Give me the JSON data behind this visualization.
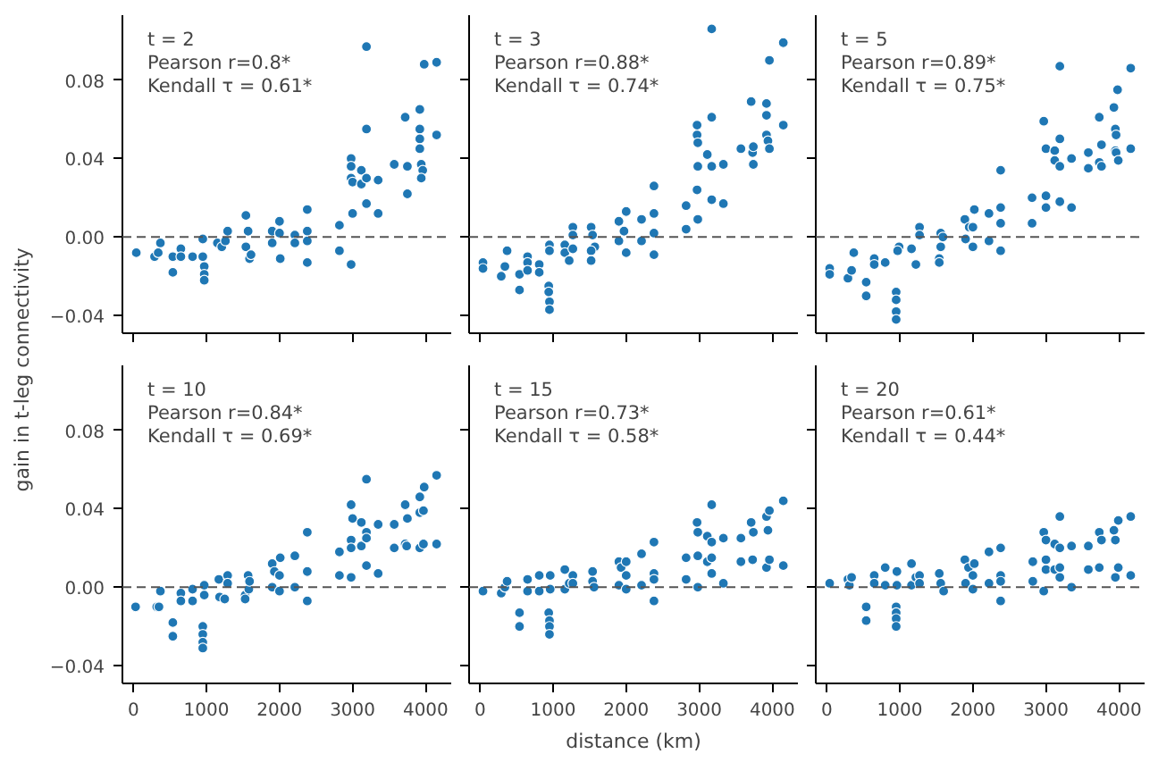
{
  "chart_data": [
    {
      "type": "scatter",
      "color": "#1f77b4",
      "grid": false,
      "tick_labels": "y",
      "xlim": [
        -150,
        4350
      ],
      "ylim": [
        -0.049,
        0.113
      ],
      "xticks": [
        {
          "value": 0,
          "label": null
        },
        {
          "value": 1000,
          "label": null
        },
        {
          "value": 2000,
          "label": null
        },
        {
          "value": 3000,
          "label": null
        },
        {
          "value": 4000,
          "label": null
        }
      ],
      "yticks": [
        {
          "value": -0.04,
          "label": "−0.04"
        },
        {
          "value": 0,
          "label": "0.00"
        },
        {
          "value": 0.04,
          "label": "0.04"
        },
        {
          "value": 0.08,
          "label": "0.08"
        }
      ],
      "ref_lines": [
        {
          "axis": "y",
          "value": 0,
          "color": "#555555",
          "line_style": "dashed"
        }
      ],
      "annotations": [
        "t = 2",
        "Pearson r=0.8*",
        "Kendall τ = 0.61*"
      ],
      "x": [
        40,
        290,
        340,
        370,
        540,
        540,
        650,
        650,
        810,
        950,
        950,
        970,
        970,
        970,
        1150,
        1210,
        1260,
        1290,
        1540,
        1540,
        1570,
        1590,
        1610,
        1900,
        1900,
        2000,
        2000,
        2010,
        2210,
        2210,
        2380,
        2380,
        2380,
        2380,
        2820,
        2820,
        2980,
        2980,
        2980,
        3000,
        3000,
        2980,
        3120,
        3120,
        3190,
        3190,
        3190,
        3190,
        3350,
        3350,
        3570,
        3720,
        3750,
        3750,
        3920,
        3920,
        3920,
        3920,
        3940,
        3960,
        3940,
        3980,
        4150,
        4150
      ],
      "values": [
        -0.008,
        -0.01,
        -0.008,
        -0.003,
        -0.018,
        -0.01,
        -0.006,
        -0.01,
        -0.01,
        -0.001,
        -0.01,
        -0.015,
        -0.019,
        -0.022,
        -0.003,
        -0.005,
        -0.002,
        0.003,
        0.011,
        -0.005,
        0.003,
        -0.011,
        -0.009,
        0.003,
        -0.003,
        0.008,
        0.002,
        -0.011,
        0.001,
        -0.003,
        0.014,
        0.003,
        -0.002,
        -0.013,
        0.006,
        -0.007,
        0.04,
        0.036,
        0.03,
        0.028,
        0.012,
        -0.014,
        0.034,
        0.027,
        0.097,
        0.055,
        0.03,
        0.017,
        0.029,
        0.012,
        0.037,
        0.061,
        0.036,
        0.022,
        0.065,
        0.055,
        0.05,
        0.045,
        0.037,
        0.034,
        0.03,
        0.088,
        0.089,
        0.052
      ]
    },
    {
      "type": "scatter",
      "color": "#1f77b4",
      "grid": false,
      "tick_labels": false,
      "xlim": [
        -150,
        4350
      ],
      "ylim": [
        -0.049,
        0.113
      ],
      "xticks": [
        {
          "value": 0,
          "label": null
        },
        {
          "value": 1000,
          "label": null
        },
        {
          "value": 2000,
          "label": null
        },
        {
          "value": 3000,
          "label": null
        },
        {
          "value": 4000,
          "label": null
        }
      ],
      "yticks": [
        {
          "value": -0.04,
          "label": null
        },
        {
          "value": 0,
          "label": null
        },
        {
          "value": 0.04,
          "label": null
        },
        {
          "value": 0.08,
          "label": null
        }
      ],
      "ref_lines": [
        {
          "axis": "y",
          "value": 0,
          "color": "#555555",
          "line_style": "dashed"
        }
      ],
      "annotations": [
        "t = 3",
        "Pearson r=0.88*",
        "Kendall τ = 0.74*"
      ],
      "x": [
        40,
        40,
        290,
        340,
        370,
        540,
        540,
        650,
        650,
        650,
        810,
        810,
        950,
        950,
        940,
        940,
        950,
        950,
        1160,
        1160,
        1220,
        1270,
        1270,
        1270,
        1520,
        1540,
        1570,
        1520,
        1520,
        1900,
        1900,
        1970,
        2000,
        2000,
        2210,
        2210,
        2380,
        2380,
        2380,
        2380,
        2820,
        2820,
        2970,
        2970,
        2980,
        2980,
        2970,
        2980,
        3110,
        3170,
        3170,
        3170,
        3170,
        3330,
        3330,
        3570,
        3710,
        3730,
        3740,
        3740,
        3920,
        3920,
        3920,
        3940,
        3960,
        3960,
        4150,
        4150
      ],
      "values": [
        -0.013,
        -0.016,
        -0.02,
        -0.015,
        -0.007,
        -0.019,
        -0.027,
        -0.01,
        -0.013,
        -0.017,
        -0.014,
        -0.018,
        -0.004,
        -0.007,
        -0.025,
        -0.028,
        -0.033,
        -0.037,
        -0.004,
        -0.008,
        -0.012,
        0.005,
        0.001,
        -0.006,
        0.005,
        0.001,
        -0.005,
        -0.007,
        -0.012,
        0.008,
        -0.002,
        0.003,
        0.013,
        -0.008,
        0.009,
        -0.002,
        0.026,
        0.012,
        0.002,
        -0.009,
        0.016,
        0.004,
        0.057,
        0.052,
        0.048,
        0.036,
        0.024,
        0.009,
        0.042,
        0.106,
        0.061,
        0.036,
        0.019,
        0.037,
        0.017,
        0.045,
        0.069,
        0.043,
        0.046,
        0.037,
        0.068,
        0.062,
        0.052,
        0.049,
        0.045,
        0.09,
        0.099,
        0.057
      ]
    },
    {
      "type": "scatter",
      "color": "#1f77b4",
      "grid": false,
      "tick_labels": false,
      "xlim": [
        -150,
        4350
      ],
      "ylim": [
        -0.049,
        0.113
      ],
      "xticks": [
        {
          "value": 0,
          "label": null
        },
        {
          "value": 1000,
          "label": null
        },
        {
          "value": 2000,
          "label": null
        },
        {
          "value": 3000,
          "label": null
        },
        {
          "value": 4000,
          "label": null
        }
      ],
      "yticks": [
        {
          "value": -0.04,
          "label": null
        },
        {
          "value": 0,
          "label": null
        },
        {
          "value": 0.04,
          "label": null
        },
        {
          "value": 0.08,
          "label": null
        }
      ],
      "ref_lines": [
        {
          "axis": "y",
          "value": 0,
          "color": "#555555",
          "line_style": "dashed"
        }
      ],
      "annotations": [
        "t = 5",
        "Pearson r=0.89*",
        "Kendall τ = 0.75*"
      ],
      "x": [
        40,
        40,
        290,
        340,
        370,
        540,
        540,
        650,
        650,
        800,
        990,
        970,
        950,
        950,
        950,
        950,
        1160,
        1220,
        1270,
        1270,
        1540,
        1540,
        1560,
        1560,
        1590,
        1890,
        1900,
        1950,
        2020,
        2000,
        2000,
        2220,
        2220,
        2380,
        2380,
        2380,
        2380,
        2810,
        2810,
        2970,
        3000,
        3000,
        3000,
        3120,
        3120,
        3190,
        3190,
        3190,
        3190,
        3350,
        3350,
        3580,
        3580,
        3730,
        3760,
        3730,
        3760,
        3930,
        3950,
        3960,
        3950,
        3960,
        3990,
        3980,
        4160,
        4160
      ],
      "values": [
        -0.016,
        -0.019,
        -0.021,
        -0.017,
        -0.008,
        -0.023,
        -0.03,
        -0.011,
        -0.014,
        -0.013,
        -0.005,
        -0.007,
        -0.028,
        -0.032,
        -0.038,
        -0.042,
        -0.006,
        -0.014,
        0.005,
        0.001,
        -0.011,
        -0.013,
        0.002,
        -0.005,
        0,
        0.009,
        -0.001,
        0.005,
        0.014,
        0.005,
        -0.005,
        0.012,
        -0.002,
        0.034,
        0.015,
        0.007,
        -0.007,
        0.02,
        0.007,
        0.059,
        0.045,
        0.021,
        0.015,
        0.044,
        0.039,
        0.087,
        0.05,
        0.036,
        0.018,
        0.04,
        0.015,
        0.043,
        0.035,
        0.061,
        0.047,
        0.038,
        0.036,
        0.066,
        0.055,
        0.052,
        0.044,
        0.043,
        0.039,
        0.075,
        0.086,
        0.045
      ]
    },
    {
      "type": "scatter",
      "color": "#1f77b4",
      "grid": false,
      "ylabel": "gain in t-leg connectivity",
      "xlim": [
        -150,
        4350
      ],
      "ylim": [
        -0.049,
        0.113
      ],
      "xticks": [
        0,
        1000,
        2000,
        3000,
        4000
      ],
      "yticks": [
        {
          "value": -0.04,
          "label": "−0.04"
        },
        {
          "value": 0,
          "label": "0.00"
        },
        {
          "value": 0.04,
          "label": "0.04"
        },
        {
          "value": 0.08,
          "label": "0.08"
        }
      ],
      "ref_lines": [
        {
          "axis": "y",
          "value": 0,
          "color": "#555555",
          "line_style": "dashed"
        }
      ],
      "annotations": [
        "t = 10",
        "Pearson r=0.84*",
        "Kendall τ = 0.69*"
      ],
      "x": [
        30,
        320,
        350,
        370,
        540,
        540,
        650,
        650,
        810,
        810,
        970,
        970,
        950,
        950,
        950,
        950,
        1170,
        1180,
        1250,
        1290,
        1290,
        1530,
        1530,
        1570,
        1580,
        1590,
        1900,
        1900,
        1930,
        2000,
        2010,
        2000,
        2210,
        2210,
        2380,
        2380,
        2380,
        2820,
        2820,
        2980,
        3000,
        2980,
        2980,
        2980,
        3120,
        3120,
        3190,
        3190,
        3190,
        3190,
        3350,
        3350,
        3570,
        3570,
        3720,
        3750,
        3720,
        3740,
        3920,
        3920,
        3920,
        3980,
        3970,
        3970,
        4150,
        4150
      ],
      "values": [
        -0.01,
        -0.01,
        -0.01,
        -0.002,
        -0.018,
        -0.025,
        -0.003,
        -0.007,
        -0.001,
        -0.007,
        0.001,
        -0.004,
        -0.02,
        -0.024,
        -0.028,
        -0.031,
        0.004,
        -0.005,
        -0.006,
        0.006,
        0.002,
        -0.004,
        -0.006,
        0.006,
        -0.001,
        0.003,
        0.012,
        0,
        0.008,
        0.006,
        0.015,
        -0.002,
        0.016,
        0,
        0.028,
        0.008,
        -0.007,
        0.018,
        0.006,
        0.042,
        0.035,
        0.024,
        0.02,
        0.005,
        0.033,
        0.021,
        0.055,
        0.028,
        0.025,
        0.011,
        0.032,
        0.007,
        0.032,
        0.02,
        0.042,
        0.035,
        0.022,
        0.021,
        0.046,
        0.038,
        0.02,
        0.051,
        0.039,
        0.022,
        0.057,
        0.022
      ]
    },
    {
      "type": "scatter",
      "color": "#1f77b4",
      "grid": false,
      "tick_labels": "x",
      "xlabel": "distance (km)",
      "xlim": [
        -150,
        4350
      ],
      "ylim": [
        -0.049,
        0.113
      ],
      "xticks": [
        0,
        1000,
        2000,
        3000,
        4000
      ],
      "yticks": [
        {
          "value": -0.04,
          "label": null
        },
        {
          "value": 0,
          "label": null
        },
        {
          "value": 0.04,
          "label": null
        },
        {
          "value": 0.08,
          "label": null
        }
      ],
      "ref_lines": [
        {
          "axis": "y",
          "value": 0,
          "color": "#555555",
          "line_style": "dashed"
        }
      ],
      "annotations": [
        "t = 15",
        "Pearson r=0.73*",
        "Kendall τ = 0.58*"
      ],
      "x": [
        40,
        290,
        340,
        370,
        540,
        540,
        650,
        650,
        810,
        810,
        960,
        960,
        940,
        950,
        950,
        950,
        1160,
        1160,
        1220,
        1270,
        1270,
        1540,
        1540,
        1560,
        1900,
        1930,
        1900,
        2000,
        2000,
        2000,
        2210,
        2210,
        2380,
        2380,
        2380,
        2380,
        2820,
        2820,
        2970,
        2980,
        2980,
        2980,
        3110,
        3110,
        3170,
        3170,
        3170,
        3170,
        3330,
        3330,
        3570,
        3570,
        3710,
        3740,
        3730,
        3920,
        3940,
        3920,
        3960,
        3960,
        4150,
        4150
      ],
      "values": [
        -0.002,
        -0.003,
        0,
        0.003,
        -0.013,
        -0.02,
        0.004,
        -0.002,
        0.006,
        -0.002,
        0.006,
        -0.001,
        -0.013,
        -0.017,
        -0.02,
        -0.024,
        0.009,
        -0.001,
        0.002,
        0.006,
        0.002,
        0.008,
        0.003,
        0,
        0.013,
        0.01,
        0.001,
        0.013,
        0.006,
        -0.001,
        0.017,
        0.001,
        0.023,
        0.007,
        0.004,
        -0.007,
        0.015,
        0.004,
        0.033,
        0.028,
        0.016,
        0,
        0.026,
        0.013,
        0.042,
        0.023,
        0.015,
        0.007,
        0.025,
        0.002,
        0.025,
        0.013,
        0.033,
        0.028,
        0.014,
        0.036,
        0.029,
        0.01,
        0.039,
        0.014,
        0.044,
        0.011
      ]
    },
    {
      "type": "scatter",
      "color": "#1f77b4",
      "grid": false,
      "tick_labels": "x",
      "xlim": [
        -150,
        4350
      ],
      "ylim": [
        -0.049,
        0.113
      ],
      "xticks": [
        0,
        1000,
        2000,
        3000,
        4000
      ],
      "yticks": [
        {
          "value": -0.04,
          "label": null
        },
        {
          "value": 0,
          "label": null
        },
        {
          "value": 0.04,
          "label": null
        },
        {
          "value": 0.08,
          "label": null
        }
      ],
      "ref_lines": [
        {
          "axis": "y",
          "value": 0,
          "color": "#555555",
          "line_style": "dashed"
        }
      ],
      "annotations": [
        "t = 20",
        "Pearson r=0.61*",
        "Kendall τ = 0.44*"
      ],
      "x": [
        40,
        290,
        310,
        340,
        540,
        540,
        650,
        650,
        800,
        800,
        960,
        960,
        950,
        950,
        950,
        950,
        1160,
        1160,
        1220,
        1270,
        1270,
        1540,
        1560,
        1600,
        1890,
        1940,
        1900,
        2020,
        2000,
        2000,
        2220,
        2220,
        2380,
        2380,
        2380,
        2380,
        2820,
        2820,
        2970,
        3000,
        3000,
        3000,
        2970,
        3120,
        3120,
        3190,
        3190,
        3190,
        3190,
        3350,
        3350,
        3580,
        3580,
        3730,
        3760,
        3730,
        3930,
        3950,
        3950,
        3990,
        3990,
        4160,
        4160
      ],
      "values": [
        0.002,
        0.004,
        0.001,
        0.005,
        -0.01,
        -0.017,
        0.006,
        0.002,
        0.01,
        0.001,
        0.008,
        0.001,
        -0.01,
        -0.013,
        -0.016,
        -0.02,
        0.012,
        0.001,
        0.005,
        0.006,
        0.002,
        0.007,
        0.002,
        -0.002,
        0.014,
        0.01,
        0.002,
        0.012,
        0.006,
        -0.001,
        0.018,
        0.002,
        0.02,
        0.006,
        0.003,
        -0.007,
        0.013,
        0.003,
        0.028,
        0.024,
        0.014,
        0.009,
        -0.002,
        0.022,
        0.009,
        0.036,
        0.02,
        0.01,
        0.005,
        0.021,
        0,
        0.021,
        0.009,
        0.028,
        0.024,
        0.01,
        0.029,
        0.024,
        0.005,
        0.034,
        0.01,
        0.036,
        0.006
      ]
    }
  ]
}
